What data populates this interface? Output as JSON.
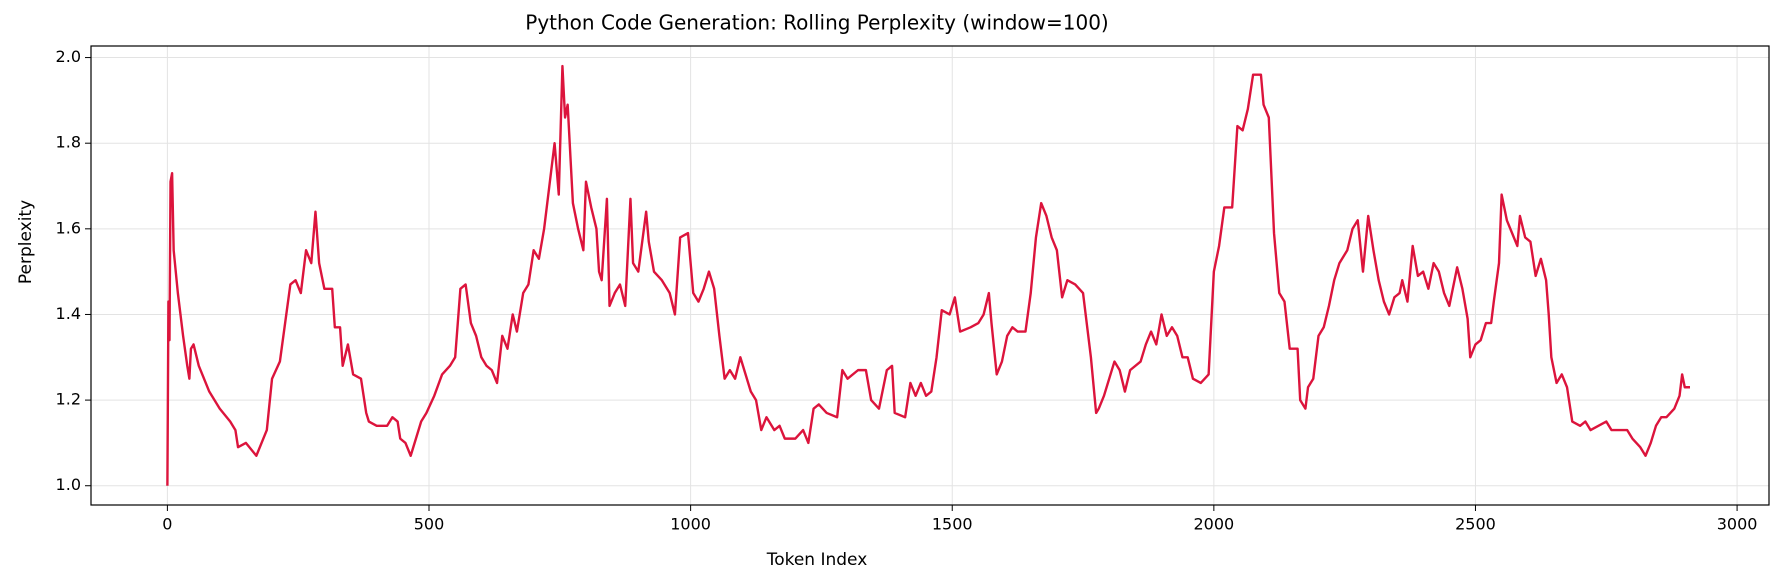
{
  "chart_data": {
    "type": "line",
    "title": "Python Code Generation: Rolling Perplexity (window=100)",
    "x_label": "Token Index",
    "y_label": "Perplexity",
    "color": "#dc143c",
    "grid": true,
    "xlim": [
      -146,
      3061
    ],
    "ylim": [
      0.955,
      2.027
    ],
    "xticks": [
      0,
      500,
      1000,
      1500,
      2000,
      2500,
      3000
    ],
    "yticks": [
      {
        "value": 1,
        "label": "1.0"
      },
      1.2,
      1.4,
      1.6,
      1.8,
      {
        "value": 2,
        "label": "2.0"
      }
    ],
    "x": [
      0,
      2,
      4,
      6,
      9,
      12,
      20,
      30,
      38,
      42,
      45,
      50,
      60,
      80,
      100,
      120,
      130,
      135,
      150,
      170,
      180,
      190,
      200,
      215,
      225,
      235,
      245,
      255,
      265,
      275,
      283,
      290,
      300,
      315,
      320,
      330,
      335,
      345,
      355,
      370,
      380,
      385,
      400,
      420,
      430,
      440,
      445,
      455,
      465,
      475,
      485,
      495,
      510,
      525,
      540,
      550,
      560,
      570,
      580,
      590,
      600,
      610,
      620,
      630,
      640,
      650,
      660,
      668,
      680,
      690,
      700,
      710,
      720,
      730,
      740,
      748,
      755,
      760,
      765,
      775,
      785,
      795,
      800,
      810,
      820,
      825,
      830,
      840,
      845,
      855,
      865,
      875,
      885,
      890,
      900,
      915,
      920,
      930,
      945,
      960,
      970,
      980,
      995,
      1005,
      1015,
      1025,
      1035,
      1045,
      1055,
      1065,
      1075,
      1085,
      1095,
      1105,
      1115,
      1125,
      1135,
      1145,
      1160,
      1170,
      1180,
      1200,
      1215,
      1225,
      1235,
      1245,
      1260,
      1280,
      1290,
      1300,
      1320,
      1335,
      1345,
      1360,
      1375,
      1385,
      1390,
      1410,
      1420,
      1430,
      1440,
      1450,
      1460,
      1470,
      1480,
      1495,
      1505,
      1515,
      1535,
      1550,
      1560,
      1570,
      1575,
      1585,
      1595,
      1605,
      1615,
      1625,
      1640,
      1650,
      1660,
      1670,
      1680,
      1690,
      1700,
      1710,
      1720,
      1735,
      1750,
      1755,
      1765,
      1775,
      1780,
      1790,
      1800,
      1810,
      1820,
      1830,
      1840,
      1860,
      1870,
      1880,
      1890,
      1900,
      1910,
      1920,
      1930,
      1940,
      1950,
      1960,
      1975,
      1990,
      2000,
      2010,
      2020,
      2035,
      2045,
      2055,
      2065,
      2075,
      2090,
      2095,
      2105,
      2115,
      2125,
      2135,
      2145,
      2160,
      2165,
      2175,
      2180,
      2190,
      2200,
      2210,
      2220,
      2230,
      2240,
      2255,
      2265,
      2275,
      2285,
      2295,
      2305,
      2315,
      2325,
      2335,
      2345,
      2355,
      2360,
      2370,
      2380,
      2390,
      2400,
      2410,
      2420,
      2430,
      2440,
      2450,
      2465,
      2475,
      2485,
      2490,
      2500,
      2510,
      2520,
      2530,
      2535,
      2545,
      2550,
      2560,
      2570,
      2580,
      2585,
      2595,
      2605,
      2615,
      2625,
      2635,
      2640,
      2645,
      2655,
      2665,
      2675,
      2685,
      2700,
      2710,
      2720,
      2735,
      2750,
      2760,
      2775,
      2790,
      2800,
      2815,
      2825,
      2835,
      2845,
      2855,
      2865,
      2880,
      2890,
      2895,
      2900,
      2910
    ],
    "values": [
      1.0,
      1.43,
      1.34,
      1.71,
      1.73,
      1.55,
      1.45,
      1.35,
      1.28,
      1.25,
      1.32,
      1.33,
      1.28,
      1.22,
      1.18,
      1.15,
      1.13,
      1.09,
      1.1,
      1.07,
      1.1,
      1.13,
      1.25,
      1.29,
      1.38,
      1.47,
      1.48,
      1.45,
      1.55,
      1.52,
      1.64,
      1.52,
      1.46,
      1.46,
      1.37,
      1.37,
      1.28,
      1.33,
      1.26,
      1.25,
      1.17,
      1.15,
      1.14,
      1.14,
      1.16,
      1.15,
      1.11,
      1.1,
      1.07,
      1.11,
      1.15,
      1.17,
      1.21,
      1.26,
      1.28,
      1.3,
      1.46,
      1.47,
      1.38,
      1.35,
      1.3,
      1.28,
      1.27,
      1.24,
      1.35,
      1.32,
      1.4,
      1.36,
      1.45,
      1.47,
      1.55,
      1.53,
      1.6,
      1.7,
      1.8,
      1.68,
      1.98,
      1.86,
      1.89,
      1.66,
      1.6,
      1.55,
      1.71,
      1.65,
      1.6,
      1.5,
      1.48,
      1.67,
      1.42,
      1.45,
      1.47,
      1.42,
      1.67,
      1.52,
      1.5,
      1.64,
      1.57,
      1.5,
      1.48,
      1.45,
      1.4,
      1.58,
      1.59,
      1.45,
      1.43,
      1.46,
      1.5,
      1.46,
      1.35,
      1.25,
      1.27,
      1.25,
      1.3,
      1.26,
      1.22,
      1.2,
      1.13,
      1.16,
      1.13,
      1.14,
      1.11,
      1.11,
      1.13,
      1.1,
      1.18,
      1.19,
      1.17,
      1.16,
      1.27,
      1.25,
      1.27,
      1.27,
      1.2,
      1.18,
      1.27,
      1.28,
      1.17,
      1.16,
      1.24,
      1.21,
      1.24,
      1.21,
      1.22,
      1.3,
      1.41,
      1.4,
      1.44,
      1.36,
      1.37,
      1.38,
      1.4,
      1.45,
      1.38,
      1.26,
      1.29,
      1.35,
      1.37,
      1.36,
      1.36,
      1.45,
      1.58,
      1.66,
      1.63,
      1.58,
      1.55,
      1.44,
      1.48,
      1.47,
      1.45,
      1.4,
      1.3,
      1.17,
      1.18,
      1.21,
      1.25,
      1.29,
      1.27,
      1.22,
      1.27,
      1.29,
      1.33,
      1.36,
      1.33,
      1.4,
      1.35,
      1.37,
      1.35,
      1.3,
      1.3,
      1.25,
      1.24,
      1.26,
      1.5,
      1.56,
      1.65,
      1.65,
      1.84,
      1.83,
      1.88,
      1.96,
      1.96,
      1.89,
      1.86,
      1.59,
      1.45,
      1.43,
      1.32,
      1.32,
      1.2,
      1.18,
      1.23,
      1.25,
      1.35,
      1.37,
      1.42,
      1.48,
      1.52,
      1.55,
      1.6,
      1.62,
      1.5,
      1.63,
      1.55,
      1.48,
      1.43,
      1.4,
      1.44,
      1.45,
      1.48,
      1.43,
      1.56,
      1.49,
      1.5,
      1.46,
      1.52,
      1.5,
      1.45,
      1.42,
      1.51,
      1.46,
      1.39,
      1.3,
      1.33,
      1.34,
      1.38,
      1.38,
      1.43,
      1.52,
      1.68,
      1.62,
      1.59,
      1.56,
      1.63,
      1.58,
      1.57,
      1.49,
      1.53,
      1.48,
      1.4,
      1.3,
      1.24,
      1.26,
      1.23,
      1.15,
      1.14,
      1.15,
      1.13,
      1.14,
      1.15,
      1.13,
      1.13,
      1.13,
      1.11,
      1.09,
      1.07,
      1.1,
      1.14,
      1.16,
      1.16,
      1.18,
      1.21,
      1.26,
      1.23,
      1.23
    ]
  }
}
